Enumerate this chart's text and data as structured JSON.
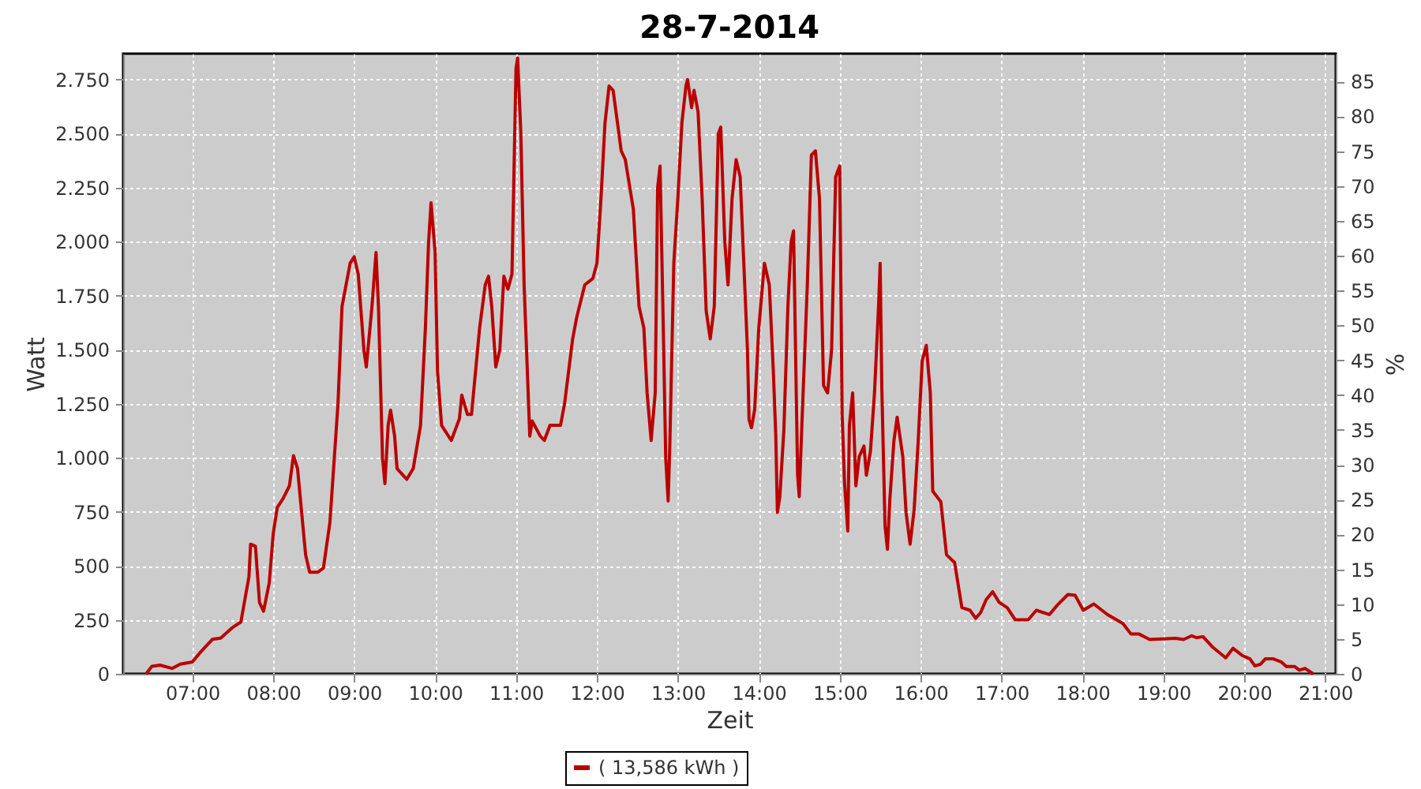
{
  "chart_data": {
    "type": "line",
    "title": "28-7-2014",
    "xlabel": "Zeit",
    "ylabel": "Watt",
    "y2label": "%",
    "xlim": [
      6.145,
      21.13
    ],
    "xticks": [
      {
        "value": 7,
        "label": "07:00"
      },
      {
        "value": 8,
        "label": "08:00"
      },
      {
        "value": 9,
        "label": "09:00"
      },
      {
        "value": 10,
        "label": "10:00"
      },
      {
        "value": 11,
        "label": "11:00"
      },
      {
        "value": 12,
        "label": "12:00"
      },
      {
        "value": 13,
        "label": "13:00"
      },
      {
        "value": 14,
        "label": "14:00"
      },
      {
        "value": 15,
        "label": "15:00"
      },
      {
        "value": 16,
        "label": "16:00"
      },
      {
        "value": 17,
        "label": "17:00"
      },
      {
        "value": 18,
        "label": "18:00"
      },
      {
        "value": 19,
        "label": "19:00"
      },
      {
        "value": 20,
        "label": "20:00"
      },
      {
        "value": 21,
        "label": "21:00"
      }
    ],
    "ylim": [
      0,
      2870
    ],
    "yticks": [
      0,
      250,
      500,
      750,
      {
        "value": 1000,
        "label": "1.000"
      },
      {
        "value": 1250,
        "label": "1.250"
      },
      {
        "value": 1500,
        "label": "1.500"
      },
      {
        "value": 1750,
        "label": "1.750"
      },
      {
        "value": 2000,
        "label": "2.000"
      },
      {
        "value": 2250,
        "label": "2.250"
      },
      {
        "value": 2500,
        "label": "2.500"
      },
      {
        "value": 2750,
        "label": "2.750"
      }
    ],
    "y2lim": [
      0,
      89
    ],
    "y2ticks": [
      0,
      5,
      10,
      15,
      20,
      25,
      30,
      35,
      40,
      45,
      50,
      55,
      60,
      65,
      70,
      75,
      80,
      85
    ],
    "grid": true,
    "legend": "bottom",
    "marker": "none",
    "line_style": "solid",
    "series": [
      {
        "name": "( 13,586 kWh )",
        "color": "#bb0000",
        "x": [
          6.43,
          6.5,
          6.6,
          6.75,
          6.85,
          7.0,
          7.1,
          7.25,
          7.35,
          7.5,
          7.6,
          7.7,
          7.72,
          7.78,
          7.83,
          7.88,
          7.95,
          8.0,
          8.05,
          8.12,
          8.2,
          8.25,
          8.3,
          8.35,
          8.4,
          8.45,
          8.55,
          8.62,
          8.7,
          8.8,
          8.85,
          8.95,
          9.0,
          9.05,
          9.12,
          9.15,
          9.22,
          9.27,
          9.3,
          9.35,
          9.38,
          9.42,
          9.45,
          9.5,
          9.53,
          9.65,
          9.73,
          9.82,
          9.88,
          9.92,
          9.95,
          10.0,
          10.03,
          10.08,
          10.2,
          10.3,
          10.33,
          10.4,
          10.45,
          10.5,
          10.55,
          10.62,
          10.66,
          10.7,
          10.75,
          10.8,
          10.85,
          10.9,
          10.95,
          11.0,
          11.02,
          11.06,
          11.1,
          11.17,
          11.2,
          11.3,
          11.35,
          11.42,
          11.55,
          11.6,
          11.7,
          11.75,
          11.85,
          11.95,
          12.0,
          12.05,
          12.1,
          12.15,
          12.2,
          12.3,
          12.35,
          12.45,
          12.52,
          12.58,
          12.62,
          12.67,
          12.72,
          12.75,
          12.78,
          12.82,
          12.85,
          12.88,
          12.9,
          12.95,
          13.0,
          13.05,
          13.1,
          13.12,
          13.17,
          13.2,
          13.25,
          13.3,
          13.35,
          13.4,
          13.45,
          13.5,
          13.53,
          13.58,
          13.62,
          13.67,
          13.72,
          13.77,
          13.86,
          13.88,
          13.91,
          13.95,
          14.0,
          14.07,
          14.13,
          14.18,
          14.21,
          14.23,
          14.26,
          14.31,
          14.36,
          14.4,
          14.43,
          14.48,
          14.5,
          14.53,
          14.6,
          14.65,
          14.7,
          14.75,
          14.8,
          14.85,
          14.9,
          14.95,
          15.0,
          15.03,
          15.06,
          15.1,
          15.12,
          15.16,
          15.2,
          15.24,
          15.3,
          15.33,
          15.38,
          15.43,
          15.48,
          15.5,
          15.52,
          15.56,
          15.59,
          15.62,
          15.67,
          15.71,
          15.78,
          15.82,
          15.87,
          15.92,
          15.97,
          16.02,
          16.07,
          16.12,
          16.15,
          16.25,
          16.32,
          16.42,
          16.51,
          16.61,
          16.68,
          16.74,
          16.81,
          16.89,
          16.97,
          17.07,
          17.17,
          17.33,
          17.43,
          17.59,
          17.69,
          17.82,
          17.91,
          18.01,
          18.14,
          18.31,
          18.5,
          18.6,
          18.7,
          18.83,
          19.15,
          19.25,
          19.35,
          19.41,
          19.49,
          19.61,
          19.77,
          19.86,
          19.97,
          20.07,
          20.13,
          20.2,
          20.26,
          20.36,
          20.46,
          20.52,
          20.62,
          20.68,
          20.75,
          20.85
        ],
        "values": [
          0,
          35,
          40,
          25,
          45,
          55,
          100,
          160,
          165,
          215,
          240,
          450,
          600,
          590,
          330,
          290,
          420,
          650,
          770,
          810,
          870,
          1010,
          950,
          750,
          550,
          470,
          470,
          490,
          700,
          1250,
          1700,
          1900,
          1930,
          1850,
          1500,
          1420,
          1700,
          1950,
          1700,
          1000,
          880,
          1150,
          1220,
          1100,
          950,
          900,
          950,
          1150,
          1600,
          2000,
          2180,
          1950,
          1400,
          1150,
          1080,
          1180,
          1290,
          1200,
          1200,
          1400,
          1600,
          1800,
          1840,
          1700,
          1420,
          1500,
          1840,
          1780,
          1850,
          2800,
          2850,
          2500,
          1800,
          1100,
          1170,
          1100,
          1080,
          1150,
          1150,
          1250,
          1550,
          1650,
          1800,
          1830,
          1900,
          2200,
          2550,
          2720,
          2700,
          2420,
          2380,
          2150,
          1700,
          1600,
          1300,
          1080,
          1300,
          2250,
          2350,
          1600,
          1000,
          800,
          1050,
          1900,
          2200,
          2550,
          2720,
          2750,
          2620,
          2700,
          2600,
          2200,
          1680,
          1550,
          1700,
          2500,
          2530,
          2000,
          1800,
          2200,
          2380,
          2300,
          1500,
          1176,
          1139,
          1225,
          1600,
          1900,
          1800,
          1400,
          1102,
          747,
          820,
          1127,
          1700,
          2000,
          2050,
          919,
          820,
          1127,
          1800,
          2400,
          2420,
          2200,
          1335,
          1300,
          1500,
          2300,
          2350,
          1200,
          882,
          661,
          1150,
          1300,
          870,
          1004,
          1054,
          919,
          1029,
          1300,
          1700,
          1900,
          1335,
          686,
          576,
          808,
          1078,
          1188,
          1004,
          747,
          600,
          760,
          1078,
          1450,
          1520,
          1300,
          845,
          796,
          551,
          515,
          306,
          294,
          257,
          282,
          343,
          380,
          331,
          306,
          250,
          250,
          294,
          274,
          318,
          367,
          363,
          294,
          323,
          274,
          233,
          184,
          184,
          159,
          164,
          159,
          176,
          167,
          172,
          123,
          74,
          118,
          86,
          69,
          37,
          44,
          69,
          69,
          54,
          34,
          34,
          17,
          25,
          0
        ]
      }
    ]
  }
}
